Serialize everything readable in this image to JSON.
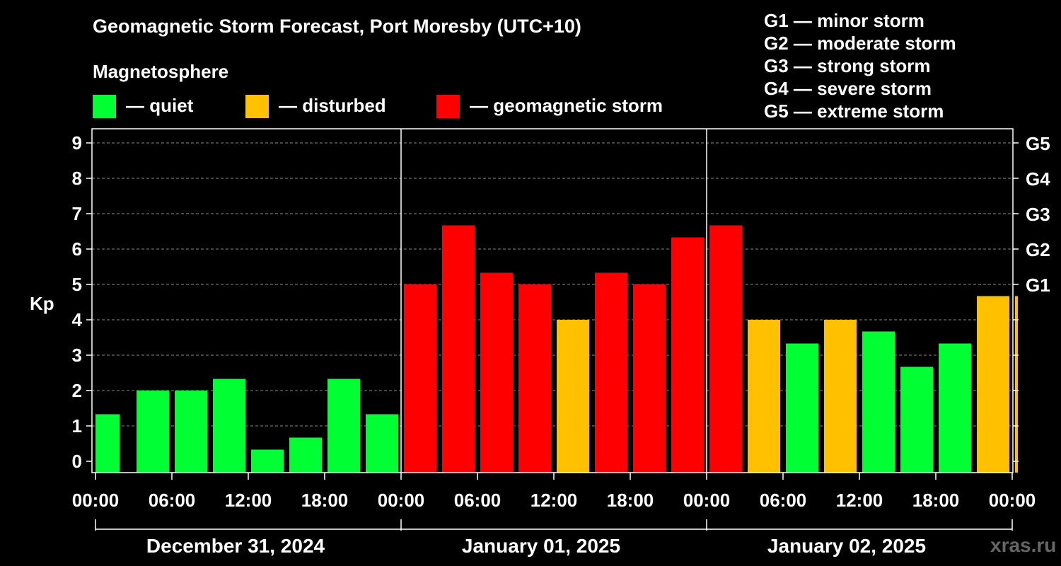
{
  "header": {
    "title": "Geomagnetic Storm Forecast, Port Moresby (UTC+10)",
    "magnetosphere_label": "Magnetosphere"
  },
  "legend": [
    {
      "label": "— quiet",
      "color": "#00FF33"
    },
    {
      "label": "— disturbed",
      "color": "#FFC000"
    },
    {
      "label": "— geomagnetic storm",
      "color": "#FF0000"
    }
  ],
  "g_scale": [
    "G1 — minor storm",
    "G2 — moderate storm",
    "G3 — strong storm",
    "G4 — severe storm",
    "G5 — extreme storm"
  ],
  "watermark": "xras.ru",
  "chart_data": {
    "type": "bar",
    "ylabel": "Kp",
    "ylim": [
      0,
      9
    ],
    "yticks": [
      0,
      1,
      2,
      3,
      4,
      5,
      6,
      7,
      8,
      9
    ],
    "right_axis_labels": [
      {
        "kp": 5,
        "label": "G1"
      },
      {
        "kp": 6,
        "label": "G2"
      },
      {
        "kp": 7,
        "label": "G3"
      },
      {
        "kp": 8,
        "label": "G4"
      },
      {
        "kp": 9,
        "label": "G5"
      }
    ],
    "grid": "horizontal dashed",
    "x_tick_labels": [
      "00:00",
      "06:00",
      "12:00",
      "18:00",
      "00:00",
      "06:00",
      "12:00",
      "18:00",
      "00:00",
      "06:00",
      "12:00",
      "18:00",
      "00:00"
    ],
    "days": [
      "December 31, 2024",
      "January 01, 2025",
      "January 02, 2025"
    ],
    "interval_hours": 3,
    "bars": [
      {
        "start": "2024-12-31 00:00",
        "kp": 1.33,
        "level": "quiet"
      },
      {
        "start": "2024-12-31 03:00",
        "kp": 2.0,
        "level": "quiet"
      },
      {
        "start": "2024-12-31 06:00",
        "kp": 2.0,
        "level": "quiet"
      },
      {
        "start": "2024-12-31 09:00",
        "kp": 2.33,
        "level": "quiet"
      },
      {
        "start": "2024-12-31 12:00",
        "kp": 0.33,
        "level": "quiet"
      },
      {
        "start": "2024-12-31 15:00",
        "kp": 0.67,
        "level": "quiet"
      },
      {
        "start": "2024-12-31 18:00",
        "kp": 2.33,
        "level": "quiet"
      },
      {
        "start": "2024-12-31 21:00",
        "kp": 1.33,
        "level": "quiet"
      },
      {
        "start": "2025-01-01 00:00",
        "kp": 5.0,
        "level": "storm"
      },
      {
        "start": "2025-01-01 03:00",
        "kp": 6.67,
        "level": "storm"
      },
      {
        "start": "2025-01-01 06:00",
        "kp": 5.33,
        "level": "storm"
      },
      {
        "start": "2025-01-01 09:00",
        "kp": 5.0,
        "level": "storm"
      },
      {
        "start": "2025-01-01 12:00",
        "kp": 4.0,
        "level": "disturbed"
      },
      {
        "start": "2025-01-01 15:00",
        "kp": 5.33,
        "level": "storm"
      },
      {
        "start": "2025-01-01 18:00",
        "kp": 5.0,
        "level": "storm"
      },
      {
        "start": "2025-01-01 21:00",
        "kp": 6.33,
        "level": "storm"
      },
      {
        "start": "2025-01-02 00:00",
        "kp": 6.67,
        "level": "storm"
      },
      {
        "start": "2025-01-02 03:00",
        "kp": 4.0,
        "level": "disturbed"
      },
      {
        "start": "2025-01-02 06:00",
        "kp": 3.33,
        "level": "quiet"
      },
      {
        "start": "2025-01-02 09:00",
        "kp": 4.0,
        "level": "disturbed"
      },
      {
        "start": "2025-01-02 12:00",
        "kp": 3.67,
        "level": "quiet"
      },
      {
        "start": "2025-01-02 15:00",
        "kp": 2.67,
        "level": "quiet"
      },
      {
        "start": "2025-01-02 18:00",
        "kp": 3.33,
        "level": "quiet"
      },
      {
        "start": "2025-01-02 21:00",
        "kp": 4.67,
        "level": "disturbed"
      },
      {
        "start": "2025-01-03 00:00",
        "kp": 4.67,
        "level": "disturbed"
      }
    ],
    "level_colors": {
      "quiet": "#00FF33",
      "disturbed": "#FFC000",
      "storm": "#FF0000"
    }
  }
}
